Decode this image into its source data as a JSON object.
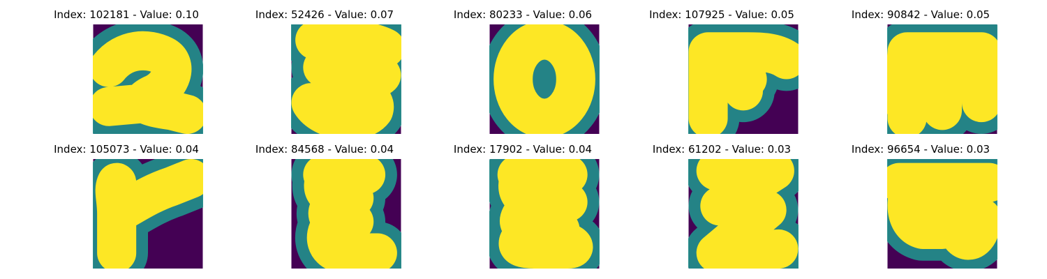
{
  "colors": {
    "background": "#440154",
    "edge": "#21918c",
    "stroke": "#fde725"
  },
  "samples": [
    {
      "title": "Index: 102181 - Value: 0.10",
      "index": 102181,
      "value": 0.1,
      "glyph": "2"
    },
    {
      "title": "Index: 52426 - Value: 0.07",
      "index": 52426,
      "value": 0.07,
      "glyph": "3"
    },
    {
      "title": "Index: 80233 - Value: 0.06",
      "index": 80233,
      "value": 0.06,
      "glyph": "0"
    },
    {
      "title": "Index: 107925 - Value: 0.05",
      "index": 107925,
      "value": 0.05,
      "glyph": "F-shape"
    },
    {
      "title": "Index: 90842 - Value: 0.05",
      "index": 90842,
      "value": 0.05,
      "glyph": "m-shape"
    },
    {
      "title": "Index: 105073 - Value: 0.04",
      "index": 105073,
      "value": 0.04,
      "glyph": "Y-shape"
    },
    {
      "title": "Index: 84568 - Value: 0.04",
      "index": 84568,
      "value": 0.04,
      "glyph": "E-shape"
    },
    {
      "title": "Index: 17902 - Value: 0.04",
      "index": 17902,
      "value": 0.04,
      "glyph": "E-shape"
    },
    {
      "title": "Index: 61202 - Value: 0.03",
      "index": 61202,
      "value": 0.03,
      "glyph": "Z"
    },
    {
      "title": "Index: 96654 - Value: 0.03",
      "index": 96654,
      "value": 0.03,
      "glyph": "G-shape"
    }
  ]
}
